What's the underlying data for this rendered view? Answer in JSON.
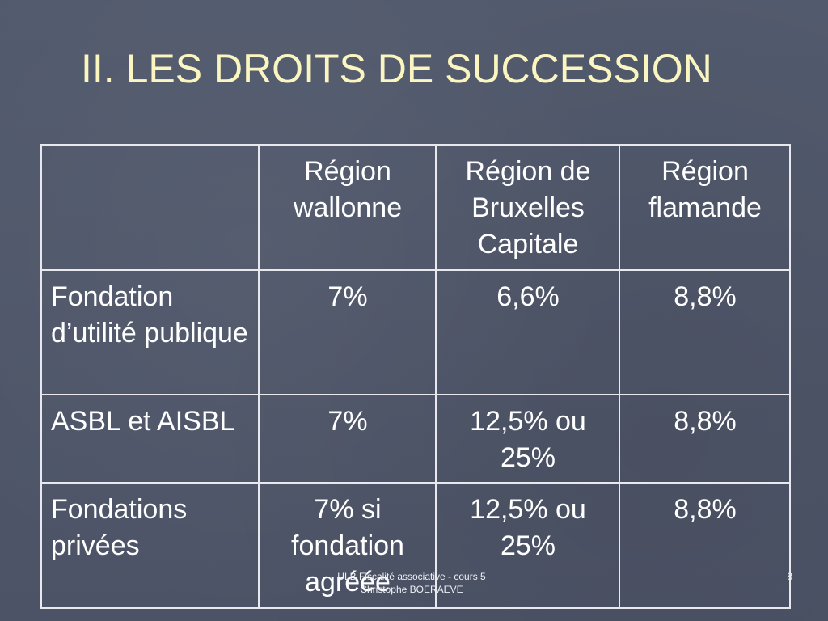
{
  "slide": {
    "title": "II. LES DROITS DE SUCCESSION",
    "footer_line1": "ULB Fiscalité associative - cours  5",
    "footer_line2": "Christophe BOERAEVE",
    "page_number": "8"
  },
  "table": {
    "header": [
      "",
      "Région wallonne",
      "Région de Bruxelles Capitale",
      "Région flamande"
    ],
    "rows": [
      [
        "Fondation d’utilité publique",
        "7%",
        "6,6%",
        "8,8%"
      ],
      [
        "ASBL et AISBL",
        "7%",
        "12,5% ou 25%",
        "8,8%"
      ],
      [
        "Fondations privées",
        "7% si fondation agréée",
        "12,5% ou 25%",
        "8,8%"
      ]
    ]
  }
}
